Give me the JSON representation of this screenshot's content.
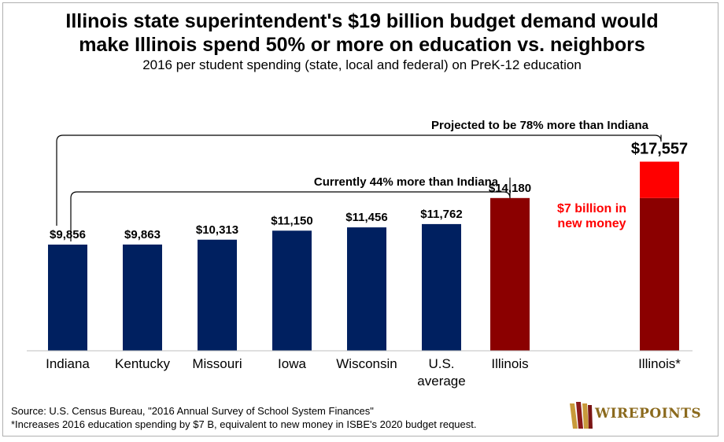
{
  "title_line1": "Illinois state superintendent's $19 billion budget demand would",
  "title_line2": "make Illinois spend 50% or more on education vs. neighbors",
  "subtitle": "2016 per student spending (state, local and federal) on PreK-12 education",
  "chart_data": {
    "type": "bar",
    "categories": [
      "Indiana",
      "Kentucky",
      "Missouri",
      "Iowa",
      "Wisconsin",
      "U.S. average",
      "Illinois",
      "Illinois*"
    ],
    "values": [
      9856,
      9863,
      10313,
      11150,
      11456,
      11762,
      14180,
      17557
    ],
    "value_labels": [
      "$9,856",
      "$9,863",
      "$10,313",
      "$11,150",
      "$11,456",
      "$11,762",
      "$14,180",
      "$17,557"
    ],
    "stacked_last": {
      "base": 14180,
      "added": 3377
    },
    "ylim": [
      0,
      20000
    ],
    "colors": {
      "states": "#002060",
      "illinois": "#8b0000",
      "new_money": "#ff0000"
    },
    "annotations": {
      "bracket_current": "Currently 44% more than Indiana",
      "bracket_projected": "Projected to be 78% more than Indiana",
      "new_money_line1": "$7 billion in",
      "new_money_line2": "new money"
    }
  },
  "source_line": "Source: U.S. Census Bureau, \"2016 Annual Survey of School System Finances\"",
  "footnote_line": "*Increases 2016 education spending by $7 B, equivalent to new money in ISBE's 2020 budget request.",
  "logo_text": "WIREPOINTS"
}
